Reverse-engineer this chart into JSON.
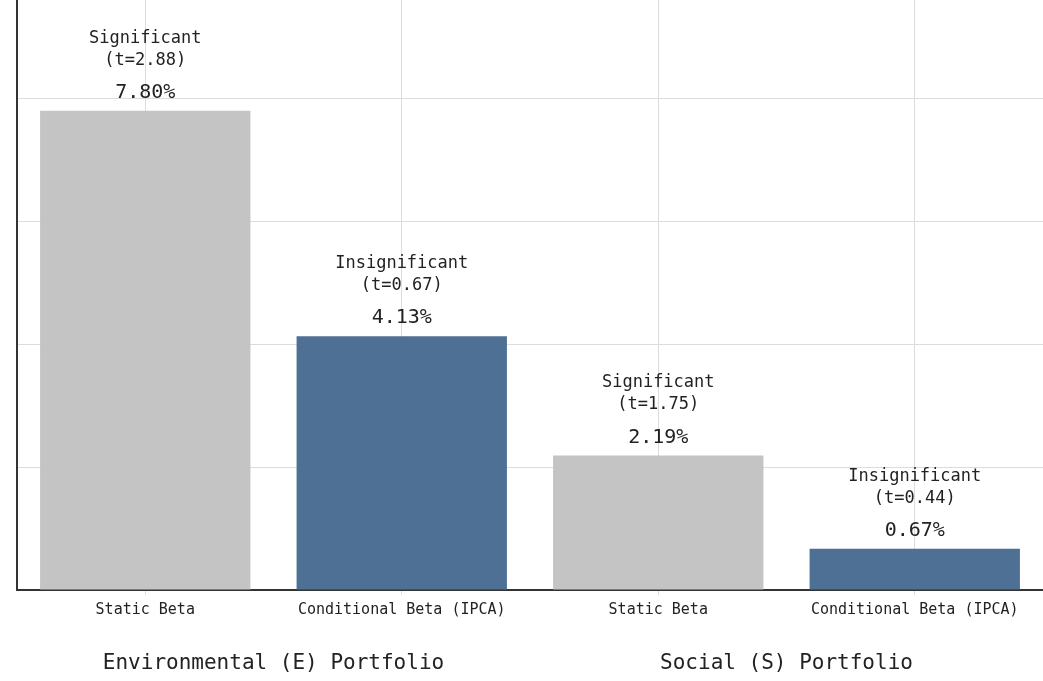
{
  "chart_data": {
    "type": "bar",
    "categories": [
      "Static Beta",
      "Conditional Beta (IPCA)",
      "Static Beta",
      "Conditional Beta (IPCA)"
    ],
    "values": [
      7.8,
      4.13,
      2.19,
      0.67
    ],
    "colors": [
      "#c4c4c4",
      "#4e7094",
      "#c4c4c4",
      "#4e7094"
    ],
    "value_labels": [
      "7.80%",
      "4.13%",
      "2.19%",
      "0.67%"
    ],
    "ylim": [
      0,
      9.6
    ],
    "yticks": [
      {
        "value": 0,
        "label": null
      },
      {
        "value": 2,
        "label": null
      },
      {
        "value": 4,
        "label": null
      },
      {
        "value": 6,
        "label": null
      },
      {
        "value": 8,
        "label": null
      }
    ],
    "tick_labels": "x",
    "grid": true,
    "legend": false,
    "annotations": [
      "Significant\n(t=2.88)",
      "Insignificant\n(t=0.67)",
      "Significant\n(t=1.75)",
      "Insignificant\n(t=0.44)",
      "Environmental (E) Portfolio",
      "Social (S) Portfolio"
    ]
  }
}
